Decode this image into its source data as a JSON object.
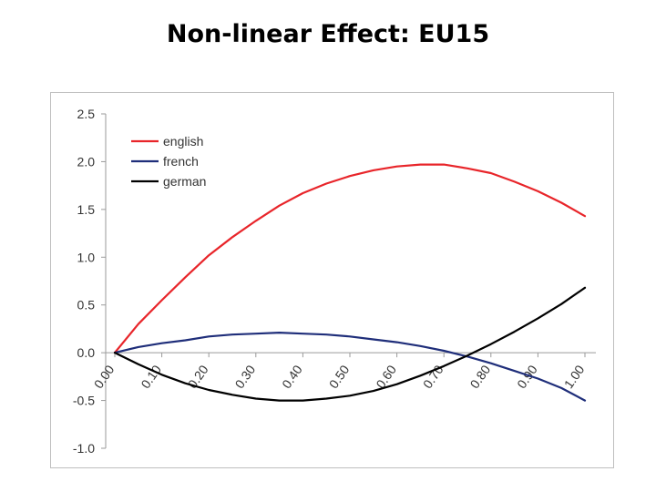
{
  "page_title": "Non-linear Effect: EU15",
  "chart_data": {
    "type": "line",
    "title": "Non-linear Effect: EU15",
    "xlabel": "",
    "ylabel": "",
    "ylim": [
      -1.0,
      2.5
    ],
    "y_ticks": [
      2.5,
      2.0,
      1.5,
      1.0,
      0.5,
      0.0,
      -0.5,
      -1.0
    ],
    "y_tick_labels": [
      "2.5",
      "2.0",
      "1.5",
      "1.0",
      "0.5",
      "0.0",
      "-0.5",
      "-1.0"
    ],
    "x_tick_labels": [
      "0.00",
      "0.10",
      "0.20",
      "0.30",
      "0.40",
      "0.50",
      "0.60",
      "0.70",
      "0.80",
      "0.90",
      "1.00"
    ],
    "xlim": [
      0.0,
      1.0
    ],
    "grid": false,
    "legend_position": "top-left",
    "x": [
      0.0,
      0.05,
      0.1,
      0.15,
      0.2,
      0.25,
      0.3,
      0.35,
      0.4,
      0.45,
      0.5,
      0.55,
      0.6,
      0.65,
      0.7,
      0.75,
      0.8,
      0.85,
      0.9,
      0.95,
      1.0
    ],
    "series": [
      {
        "name": "english",
        "color": "#e8252a",
        "values": [
          0.0,
          0.3,
          0.55,
          0.79,
          1.02,
          1.21,
          1.38,
          1.54,
          1.67,
          1.77,
          1.85,
          1.91,
          1.95,
          1.97,
          1.97,
          1.93,
          1.88,
          1.79,
          1.69,
          1.57,
          1.43
        ]
      },
      {
        "name": "french",
        "color": "#1f2e7a",
        "values": [
          0.0,
          0.06,
          0.1,
          0.13,
          0.17,
          0.19,
          0.2,
          0.21,
          0.2,
          0.19,
          0.17,
          0.14,
          0.11,
          0.07,
          0.02,
          -0.04,
          -0.11,
          -0.19,
          -0.27,
          -0.37,
          -0.5
        ]
      },
      {
        "name": "german",
        "color": "#000000",
        "values": [
          0.0,
          -0.12,
          -0.23,
          -0.32,
          -0.39,
          -0.44,
          -0.48,
          -0.5,
          -0.5,
          -0.48,
          -0.45,
          -0.4,
          -0.33,
          -0.24,
          -0.14,
          -0.03,
          0.09,
          0.22,
          0.36,
          0.51,
          0.68
        ]
      }
    ]
  }
}
